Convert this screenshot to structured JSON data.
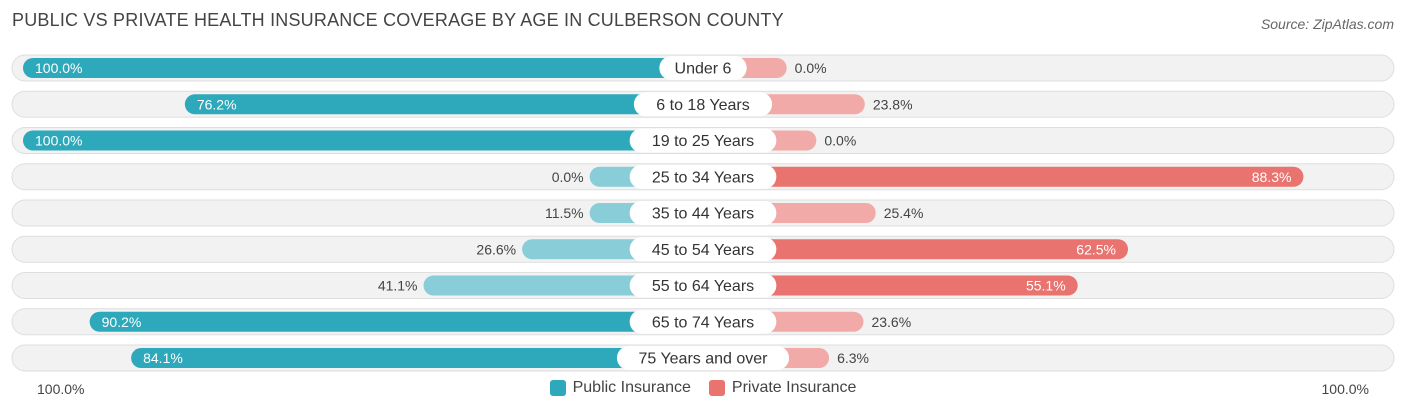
{
  "title": "PUBLIC VS PRIVATE HEALTH INSURANCE COVERAGE BY AGE IN CULBERSON COUNTY",
  "source": "Source: ZipAtlas.com",
  "colors": {
    "public": "#2ea8bb",
    "public_light": "#88cdd7",
    "private": "#e8736f",
    "private_light": "#f1aaa7"
  },
  "axis": {
    "left_label": "100.0%",
    "right_label": "100.0%"
  },
  "legend": {
    "public": "Public Insurance",
    "private": "Private Insurance"
  },
  "chart_data": {
    "type": "bar",
    "orientation": "horizontal-diverging",
    "title": "PUBLIC VS PRIVATE HEALTH INSURANCE COVERAGE BY AGE IN CULBERSON COUNTY",
    "xlim": [
      -100,
      100
    ],
    "categories": [
      "Under 6",
      "6 to 18 Years",
      "19 to 25 Years",
      "25 to 34 Years",
      "35 to 44 Years",
      "45 to 54 Years",
      "55 to 64 Years",
      "65 to 74 Years",
      "75 Years and over"
    ],
    "series": [
      {
        "name": "Public Insurance",
        "values": [
          100.0,
          76.2,
          100.0,
          0.0,
          11.5,
          26.6,
          41.1,
          90.2,
          84.1
        ],
        "labels": [
          "100.0%",
          "76.2%",
          "100.0%",
          "0.0%",
          "11.5%",
          "26.6%",
          "41.1%",
          "90.2%",
          "84.1%"
        ]
      },
      {
        "name": "Private Insurance",
        "values": [
          0.0,
          23.8,
          0.0,
          88.3,
          25.4,
          62.5,
          55.1,
          23.6,
          6.3
        ],
        "labels": [
          "0.0%",
          "23.8%",
          "0.0%",
          "88.3%",
          "25.4%",
          "62.5%",
          "55.1%",
          "23.6%",
          "6.3%"
        ]
      }
    ]
  }
}
